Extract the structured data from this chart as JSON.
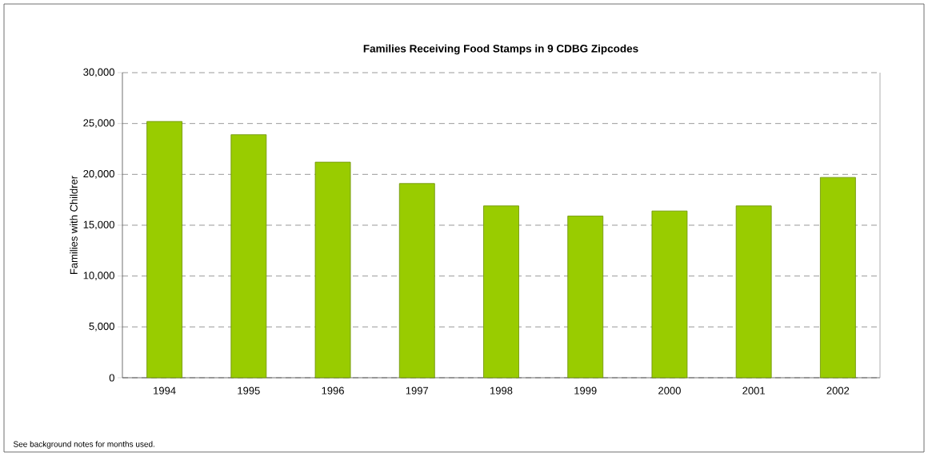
{
  "chart_data": {
    "type": "bar",
    "title": "Families Receiving Food Stamps in 9 CDBG Zipcodes",
    "ylabel": "Families with Childrer",
    "categories": [
      "1994",
      "1995",
      "1996",
      "1997",
      "1998",
      "1999",
      "2000",
      "2001",
      "2002"
    ],
    "values": [
      25200,
      23900,
      21200,
      19100,
      16900,
      15900,
      16400,
      16900,
      19700
    ],
    "color": "#99cc00",
    "ylim": [
      0,
      30000
    ],
    "yticks": [
      {
        "value": 0,
        "label": "0"
      },
      {
        "value": 5000,
        "label": "5,000"
      },
      {
        "value": 10000,
        "label": "10,000"
      },
      {
        "value": 15000,
        "label": "15,000"
      },
      {
        "value": 20000,
        "label": "20,000"
      },
      {
        "value": 25000,
        "label": "25,000"
      },
      {
        "value": 30000,
        "label": "30,000"
      }
    ],
    "grid": "y",
    "annotations": [
      "See background notes for months used."
    ]
  }
}
